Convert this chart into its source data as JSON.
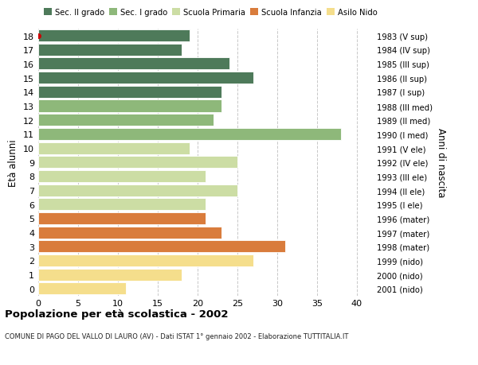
{
  "ages": [
    0,
    1,
    2,
    3,
    4,
    5,
    6,
    7,
    8,
    9,
    10,
    11,
    12,
    13,
    14,
    15,
    16,
    17,
    18
  ],
  "values": [
    11,
    18,
    27,
    31,
    23,
    21,
    21,
    25,
    21,
    25,
    19,
    38,
    22,
    23,
    23,
    27,
    24,
    18,
    19
  ],
  "right_labels": [
    "2001 (nido)",
    "2000 (nido)",
    "1999 (nido)",
    "1998 (mater)",
    "1997 (mater)",
    "1996 (mater)",
    "1995 (I ele)",
    "1994 (II ele)",
    "1993 (III ele)",
    "1992 (IV ele)",
    "1991 (V ele)",
    "1990 (I med)",
    "1989 (II med)",
    "1988 (III med)",
    "1987 (I sup)",
    "1986 (II sup)",
    "1985 (III sup)",
    "1984 (IV sup)",
    "1983 (V sup)"
  ],
  "bar_colors": [
    "#f5de8c",
    "#f5de8c",
    "#f5de8c",
    "#d97c3c",
    "#d97c3c",
    "#d97c3c",
    "#ccdda4",
    "#ccdda4",
    "#ccdda4",
    "#ccdda4",
    "#ccdda4",
    "#8eb87a",
    "#8eb87a",
    "#8eb87a",
    "#4e7a5a",
    "#4e7a5a",
    "#4e7a5a",
    "#4e7a5a",
    "#4e7a5a"
  ],
  "legend_labels": [
    "Sec. II grado",
    "Sec. I grado",
    "Scuola Primaria",
    "Scuola Infanzia",
    "Asilo Nido"
  ],
  "legend_colors": [
    "#4e7a5a",
    "#8eb87a",
    "#ccdda4",
    "#d97c3c",
    "#f5de8c"
  ],
  "ylabel_left": "Età alunni",
  "ylabel_right": "Anni di nascita",
  "title": "Popolazione per età scolastica - 2002",
  "subtitle": "COMUNE DI PAGO DEL VALLO DI LAURO (AV) - Dati ISTAT 1° gennaio 2002 - Elaborazione TUTTITALIA.IT",
  "xlim": [
    0,
    42
  ],
  "xticks": [
    0,
    5,
    10,
    15,
    20,
    25,
    30,
    35,
    40
  ],
  "background_color": "#ffffff",
  "grid_color": "#c8c8c8",
  "dot_age": 18,
  "dot_color": "#cc0000"
}
